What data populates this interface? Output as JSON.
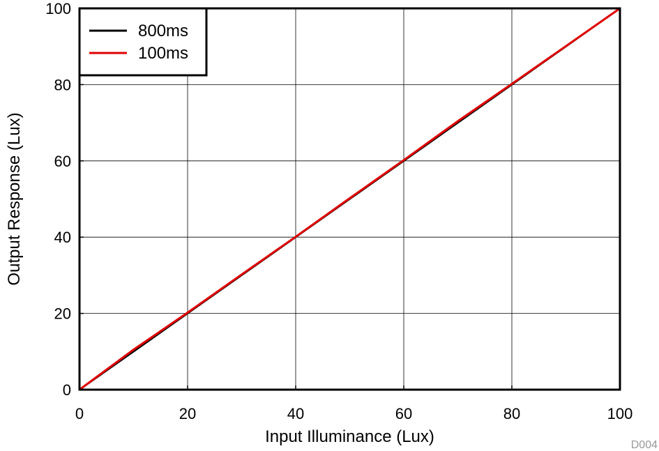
{
  "chart_data": {
    "type": "line",
    "xlabel": "Input Illuminance (Lux)",
    "ylabel": "Output Response (Lux)",
    "xlim": [
      0,
      100
    ],
    "ylim": [
      0,
      100
    ],
    "xticks": [
      0,
      20,
      40,
      60,
      80,
      100
    ],
    "yticks": [
      0,
      20,
      40,
      60,
      80,
      100
    ],
    "grid": true,
    "legend_position": "top-left",
    "series": [
      {
        "name": "800ms",
        "color": "#000000",
        "x": [
          0,
          10,
          20,
          30,
          40,
          50,
          60,
          70,
          80,
          90,
          100
        ],
        "y": [
          0,
          10,
          20,
          30,
          40,
          50,
          60,
          70,
          80,
          90,
          100
        ]
      },
      {
        "name": "100ms",
        "color": "#e00000",
        "x": [
          0,
          10,
          20,
          30,
          40,
          50,
          60,
          70,
          80,
          90,
          100
        ],
        "y": [
          0,
          10.5,
          20.2,
          30.2,
          40.1,
          50.2,
          60.2,
          70.4,
          80.2,
          90.1,
          100
        ]
      }
    ]
  },
  "figure_id": "D004"
}
